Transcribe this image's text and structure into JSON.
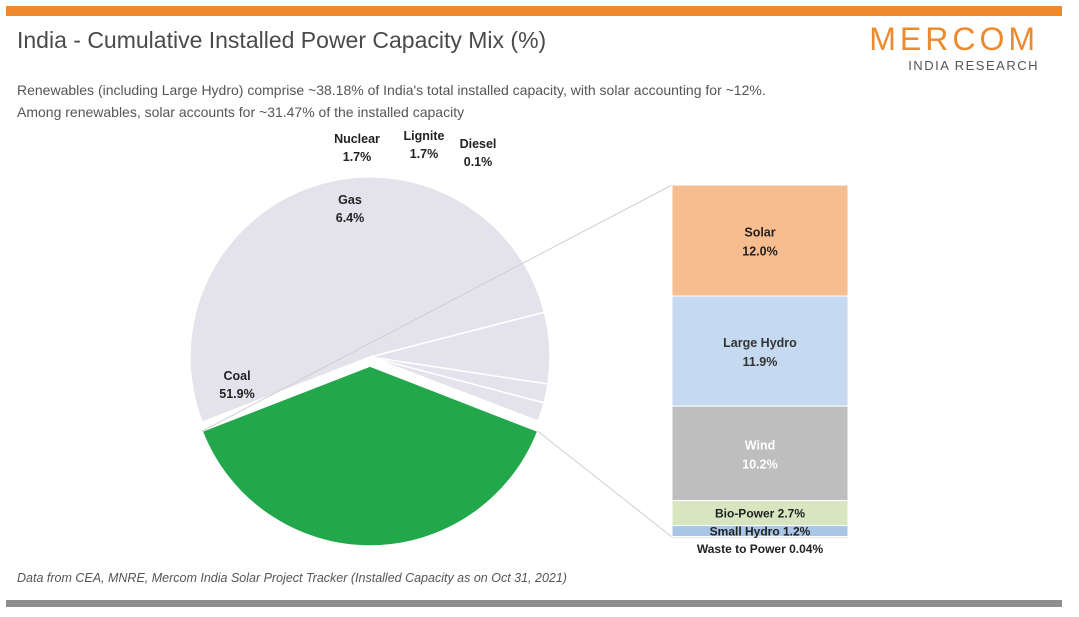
{
  "title": "India - Cumulative Installed Power Capacity Mix (%)",
  "subtitle": [
    "Renewables (including Large Hydro) comprise ~38.18% of India's total installed capacity, with solar accounting for ~12%.",
    "Among renewables, solar accounts for ~31.47% of the installed capacity"
  ],
  "logo": {
    "main": "MERCOM",
    "sub": "INDIA RESEARCH"
  },
  "source": "Data from CEA, MNRE, Mercom India Solar Project Tracker  (Installed Capacity as on Oct 31, 2021)",
  "colors": {
    "accent_orange": "#ee8a2e",
    "renewable_green": "#22a84a",
    "non_renewable": "#e4e2ea",
    "solar": "#f8bd8f",
    "large_hydro": "#c5d9f0",
    "wind": "#bebebe",
    "bio_power": "#d7e6c0",
    "small_hydro": "#a9c6e6",
    "waste_to_power": "#e5e5e5"
  },
  "chart_data": [
    {
      "type": "pie",
      "title": "India - Cumulative Installed Power Capacity Mix (%)",
      "slices": [
        {
          "name": "Renewable Energy",
          "value": 38.2,
          "label": "38.2%",
          "color": "#22a84a"
        },
        {
          "name": "Coal",
          "value": 51.9,
          "label": "51.9%",
          "color": "#e4e2ea"
        },
        {
          "name": "Gas",
          "value": 6.4,
          "label": "6.4%",
          "color": "#e4e2ea"
        },
        {
          "name": "Nuclear",
          "value": 1.7,
          "label": "1.7%",
          "color": "#e4e2ea"
        },
        {
          "name": "Lignite",
          "value": 1.7,
          "label": "1.7%",
          "color": "#e4e2ea"
        },
        {
          "name": "Diesel",
          "value": 0.1,
          "label": "0.1%",
          "color": "#ee8a2e"
        }
      ]
    },
    {
      "type": "bar",
      "stacked": true,
      "breakdown_of": "Renewable Energy",
      "segments": [
        {
          "name": "Solar",
          "value": 12.0,
          "label": "12.0%",
          "color": "#f8bd8f"
        },
        {
          "name": "Large Hydro",
          "value": 11.9,
          "label": "11.9%",
          "color": "#c5d9f0"
        },
        {
          "name": "Wind",
          "value": 10.2,
          "label": "10.2%",
          "color": "#bebebe"
        },
        {
          "name": "Bio-Power",
          "value": 2.7,
          "label": "2.7%",
          "color": "#d7e6c0"
        },
        {
          "name": "Small Hydro",
          "value": 1.2,
          "label": "1.2%",
          "color": "#a9c6e6"
        },
        {
          "name": "Waste to Power",
          "value": 0.04,
          "label": "0.04%",
          "color": "#e5e5e5"
        }
      ]
    }
  ]
}
